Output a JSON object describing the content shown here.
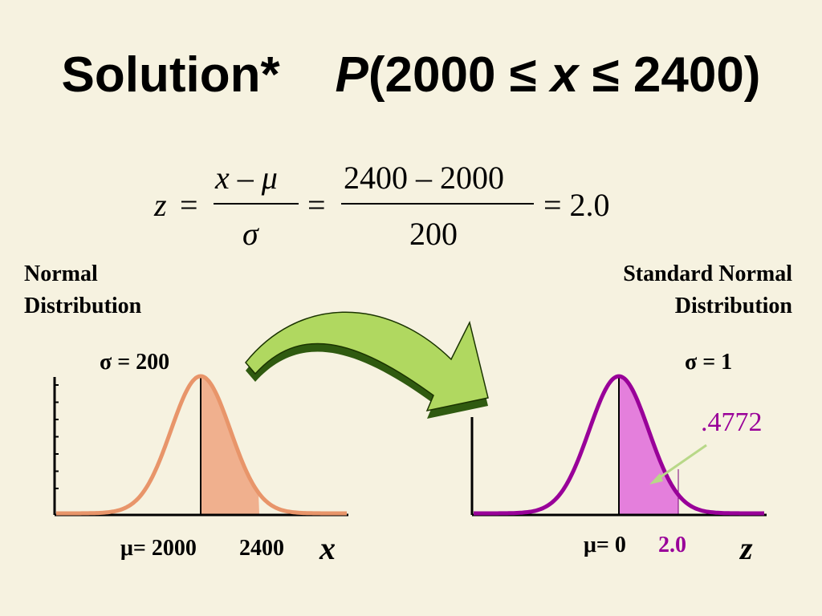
{
  "title": {
    "prefix": "Solution*",
    "p": "P",
    "open": "(2000 ≤ ",
    "x": "x",
    "close": " ≤ 2400)"
  },
  "equation": {
    "z": "z",
    "eq1": "=",
    "num1_x": "x",
    "num1_minus": " – ",
    "num1_mu": "μ",
    "den1": "σ",
    "eq2": "=",
    "num2": "2400 – 2000",
    "den2": "200",
    "eq3": "= 2.0"
  },
  "left": {
    "label_line1": "Normal",
    "label_line2": "Distribution",
    "sigma": "σ = 200",
    "mu_label": "μ= 2000",
    "x_value": "2400",
    "axis_var": "x"
  },
  "right": {
    "label_line1": "Standard Normal",
    "label_line2": "Distribution",
    "sigma": "σ = 1",
    "mu_label": "μ= 0",
    "z_value": "2.0",
    "axis_var": "z",
    "area": ".4772"
  },
  "colors": {
    "background": "#f6f2e0",
    "left_curve": "#e8956a",
    "left_fill": "#f0b08e",
    "right_curve": "#990099",
    "right_fill": "#e47fdc",
    "arrow_fill": "#b0d860",
    "arrow_stroke": "#1a3300",
    "pointer": "#b8d888"
  }
}
